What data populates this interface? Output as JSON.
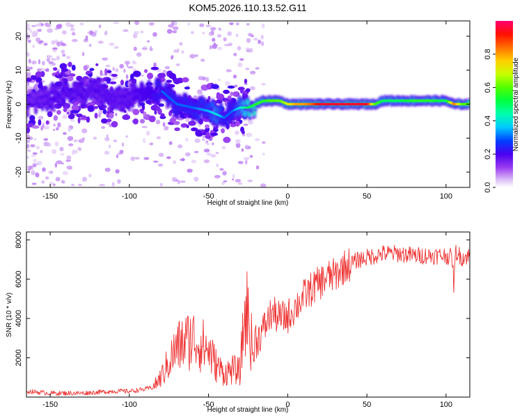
{
  "title": "KOM5.2026.110.13.52.G11",
  "chart_data": [
    {
      "type": "heatmap",
      "xlabel": "Height of straight line (km)",
      "ylabel": "Frequency (Hz)",
      "xlim": [
        -165,
        115
      ],
      "ylim": [
        -24.5,
        24.5
      ],
      "xticks": [
        -150,
        -100,
        -50,
        0,
        50,
        100
      ],
      "yticks": [
        -20,
        -10,
        0,
        10,
        20
      ],
      "colorbar": {
        "label": "Normalized spectral amplitude",
        "range": [
          0.0,
          1.0
        ],
        "ticks": [
          0.0,
          0.2,
          0.4,
          0.6,
          0.8
        ]
      },
      "ridge": {
        "x": [
          -165,
          -150,
          -140,
          -130,
          -120,
          -110,
          -100,
          -90,
          -80,
          -70,
          -60,
          -50,
          -45,
          -40,
          -35,
          -30,
          -25,
          -20,
          -15,
          -10,
          -5,
          0,
          5,
          10,
          15,
          20,
          30,
          40,
          50,
          55,
          60,
          70,
          80,
          90,
          100,
          105,
          110,
          115
        ],
        "freq": [
          0,
          2,
          4,
          3,
          4,
          1,
          2,
          3,
          4,
          0,
          -1,
          -2,
          -3,
          -4,
          -2,
          -1,
          -1,
          0,
          1,
          1,
          1,
          0,
          0,
          0,
          0,
          0,
          0,
          0,
          0,
          0,
          1,
          1,
          1,
          1,
          1,
          0,
          0,
          0
        ],
        "peak_amplitude": [
          0.15,
          0.2,
          0.2,
          0.2,
          0.2,
          0.2,
          0.2,
          0.25,
          0.3,
          0.3,
          0.3,
          0.35,
          0.4,
          0.3,
          0.3,
          0.4,
          0.5,
          0.55,
          0.55,
          0.6,
          0.6,
          0.7,
          0.8,
          0.8,
          0.85,
          0.95,
          0.95,
          0.95,
          0.95,
          0.6,
          0.5,
          0.5,
          0.55,
          0.55,
          0.5,
          0.85,
          0.6,
          0.6
        ]
      }
    },
    {
      "type": "line",
      "xlabel": "Height of straight line (km)",
      "ylabel": "SNR (10 * v/v)",
      "xlim": [
        -165,
        115
      ],
      "ylim": [
        0,
        8400
      ],
      "xticks": [
        -150,
        -100,
        -50,
        0,
        50,
        100
      ],
      "yticks": [
        2000,
        4000,
        6000,
        8000
      ],
      "series": [
        {
          "name": "SNR",
          "color": "#ee3333",
          "x": [
            -165,
            -150,
            -140,
            -130,
            -120,
            -110,
            -100,
            -90,
            -85,
            -80,
            -75,
            -70,
            -65,
            -60,
            -55,
            -50,
            -45,
            -40,
            -35,
            -30,
            -28,
            -26,
            -24,
            -22,
            -20,
            -15,
            -10,
            -5,
            0,
            5,
            10,
            15,
            20,
            25,
            30,
            35,
            40,
            45,
            50,
            55,
            60,
            70,
            80,
            90,
            100,
            104,
            105,
            106,
            110,
            115
          ],
          "y": [
            300,
            200,
            200,
            200,
            250,
            300,
            300,
            400,
            500,
            1000,
            1800,
            2500,
            2800,
            3000,
            2700,
            2400,
            1600,
            1200,
            1400,
            1300,
            3500,
            4500,
            3500,
            2200,
            2800,
            3500,
            4300,
            4000,
            4100,
            4600,
            5100,
            5500,
            5800,
            6100,
            6200,
            6600,
            6800,
            7000,
            7100,
            7200,
            7300,
            7300,
            7200,
            7200,
            7200,
            7100,
            5500,
            7400,
            7100,
            7200
          ]
        }
      ]
    }
  ]
}
